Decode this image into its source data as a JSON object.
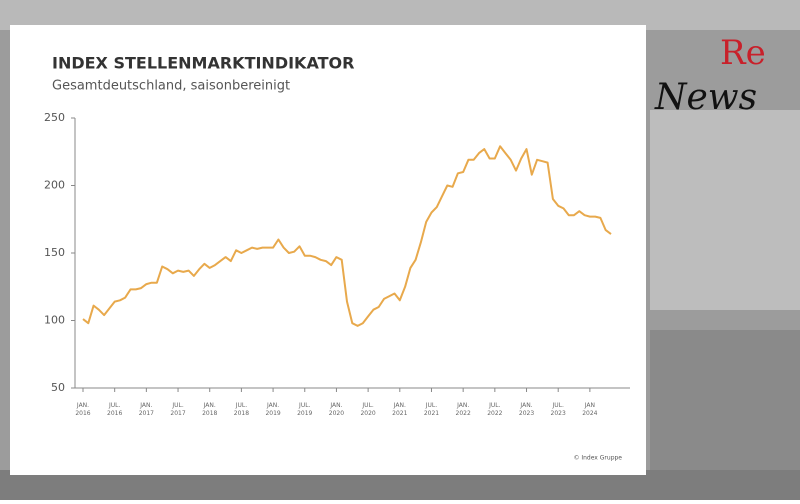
{
  "chart_data": {
    "type": "line",
    "title": "INDEX STELLENMARKTINDIKATOR",
    "subtitle": "Gesamtdeutschland, saisonbereinigt",
    "source": "© Index Gruppe",
    "logo": {
      "top": "Re",
      "bottom": "News"
    },
    "categories": [
      "JAN. 2016",
      null,
      null,
      null,
      null,
      null,
      "JUL. 2016",
      null,
      null,
      null,
      null,
      null,
      "JAN. 2017",
      null,
      null,
      null,
      null,
      null,
      "JUL. 2017",
      null,
      null,
      null,
      null,
      null,
      "JAN. 2018",
      null,
      null,
      null,
      null,
      null,
      "JUL. 2018",
      null,
      null,
      null,
      null,
      null,
      "JAN. 2019",
      null,
      null,
      null,
      null,
      null,
      "JUL. 2019",
      null,
      null,
      null,
      null,
      null,
      "JAN. 2020",
      null,
      null,
      null,
      null,
      null,
      "JUL. 2020",
      null,
      null,
      null,
      null,
      null,
      "JAN. 2021",
      null,
      null,
      null,
      null,
      null,
      "JUL. 2021",
      null,
      null,
      null,
      null,
      null,
      "JAN. 2022",
      null,
      null,
      null,
      null,
      null,
      "JUL. 2022",
      null,
      null,
      null,
      null,
      null,
      "JAN. 2023",
      null,
      null,
      null,
      null,
      null,
      "JUL. 2023",
      null,
      null,
      null,
      null,
      null,
      "JAN 2024",
      null,
      null,
      null,
      null
    ],
    "values": [
      101,
      98,
      111,
      108,
      104,
      109,
      114,
      115,
      117,
      123,
      123,
      124,
      127,
      128,
      128,
      140,
      138,
      135,
      137,
      136,
      137,
      133,
      138,
      142,
      139,
      141,
      144,
      147,
      144,
      152,
      150,
      152,
      154,
      153,
      154,
      154,
      154,
      160,
      154,
      150,
      151,
      155,
      148,
      148,
      147,
      145,
      144,
      141,
      147,
      145,
      114,
      98,
      96,
      98,
      103,
      108,
      110,
      116,
      118,
      120,
      115,
      125,
      139,
      145,
      158,
      173,
      180,
      184,
      192,
      200,
      199,
      209,
      210,
      219,
      219,
      224,
      227,
      220,
      220,
      229,
      224,
      219,
      211,
      220,
      227,
      208,
      219,
      218,
      217,
      190,
      185,
      183,
      178,
      178,
      181,
      178,
      177,
      177,
      176,
      167,
      164
    ],
    "color": "#e8a94c",
    "ylim": [
      50,
      250
    ],
    "yticks": [
      50,
      100,
      150,
      200,
      250
    ]
  }
}
